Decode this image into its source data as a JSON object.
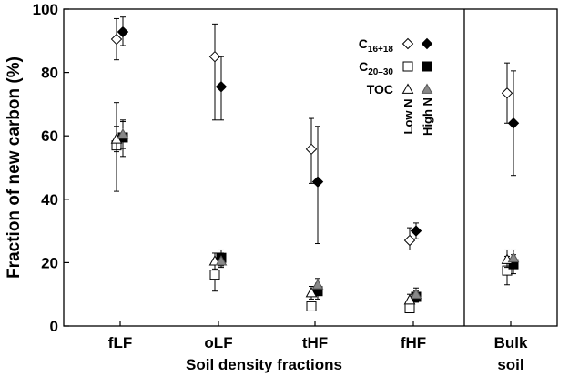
{
  "chart_data": {
    "type": "scatter",
    "ylabel": "Fraction of new carbon (%)",
    "xlabel": "Soil density fractions",
    "ylim": [
      0,
      100
    ],
    "yticks": [
      0,
      20,
      40,
      60,
      80,
      100
    ],
    "categories": [
      "fLF",
      "oLF",
      "tHF",
      "fHF",
      "Bulk"
    ],
    "bulk_second_line": "soil",
    "legend": {
      "rows": [
        {
          "label": "C",
          "sub": "16+18"
        },
        {
          "label": "C",
          "sub": "20–30"
        },
        {
          "label": "TOC",
          "sub": ""
        }
      ],
      "columns": [
        "Low N",
        "High N"
      ],
      "placement": "top-right"
    },
    "series": [
      {
        "name": "C16+18",
        "treatment": "Low N",
        "marker": "diamond",
        "filled": false,
        "values": [
          90.5,
          85,
          55.8,
          27,
          73.5
        ],
        "err_low": [
          84,
          65,
          45,
          24,
          64
        ],
        "err_high": [
          97,
          95.3,
          65.5,
          31,
          83
        ]
      },
      {
        "name": "C16+18",
        "treatment": "High N",
        "marker": "diamond",
        "filled": true,
        "values": [
          92.8,
          75.5,
          45.5,
          30,
          64
        ],
        "err_low": [
          88.5,
          65,
          26,
          27.5,
          47.5
        ],
        "err_high": [
          97.5,
          85,
          63,
          32.5,
          80.5
        ]
      },
      {
        "name": "C20–30",
        "treatment": "Low N",
        "marker": "square",
        "filled": false,
        "values": [
          57,
          16.2,
          6.2,
          5.6,
          17.5
        ],
        "err_low": [
          42.5,
          11,
          5.5,
          4.8,
          13
        ],
        "err_high": [
          70.5,
          21,
          7,
          6.4,
          22
        ]
      },
      {
        "name": "C20–30",
        "treatment": "High N",
        "marker": "square",
        "filled": true,
        "values": [
          59.5,
          21.5,
          11,
          9.2,
          19.5
        ],
        "err_low": [
          53.5,
          19,
          8.5,
          7.5,
          16.5
        ],
        "err_high": [
          64.5,
          24,
          13.5,
          11,
          22.5
        ]
      },
      {
        "name": "TOC",
        "treatment": "Low N",
        "marker": "triangle",
        "filled": false,
        "values": [
          59,
          20.5,
          10.5,
          8.2,
          21
        ],
        "err_low": [
          55,
          18,
          8.5,
          7,
          18.5
        ],
        "err_high": [
          63,
          23,
          12.5,
          10,
          24
        ]
      },
      {
        "name": "TOC",
        "treatment": "High N",
        "marker": "triangle",
        "filled": true,
        "values": [
          60.5,
          20.5,
          13,
          10,
          21.5
        ],
        "err_low": [
          56,
          18.5,
          11,
          8.5,
          19.5
        ],
        "err_high": [
          65,
          23,
          15,
          12,
          24
        ]
      }
    ]
  }
}
